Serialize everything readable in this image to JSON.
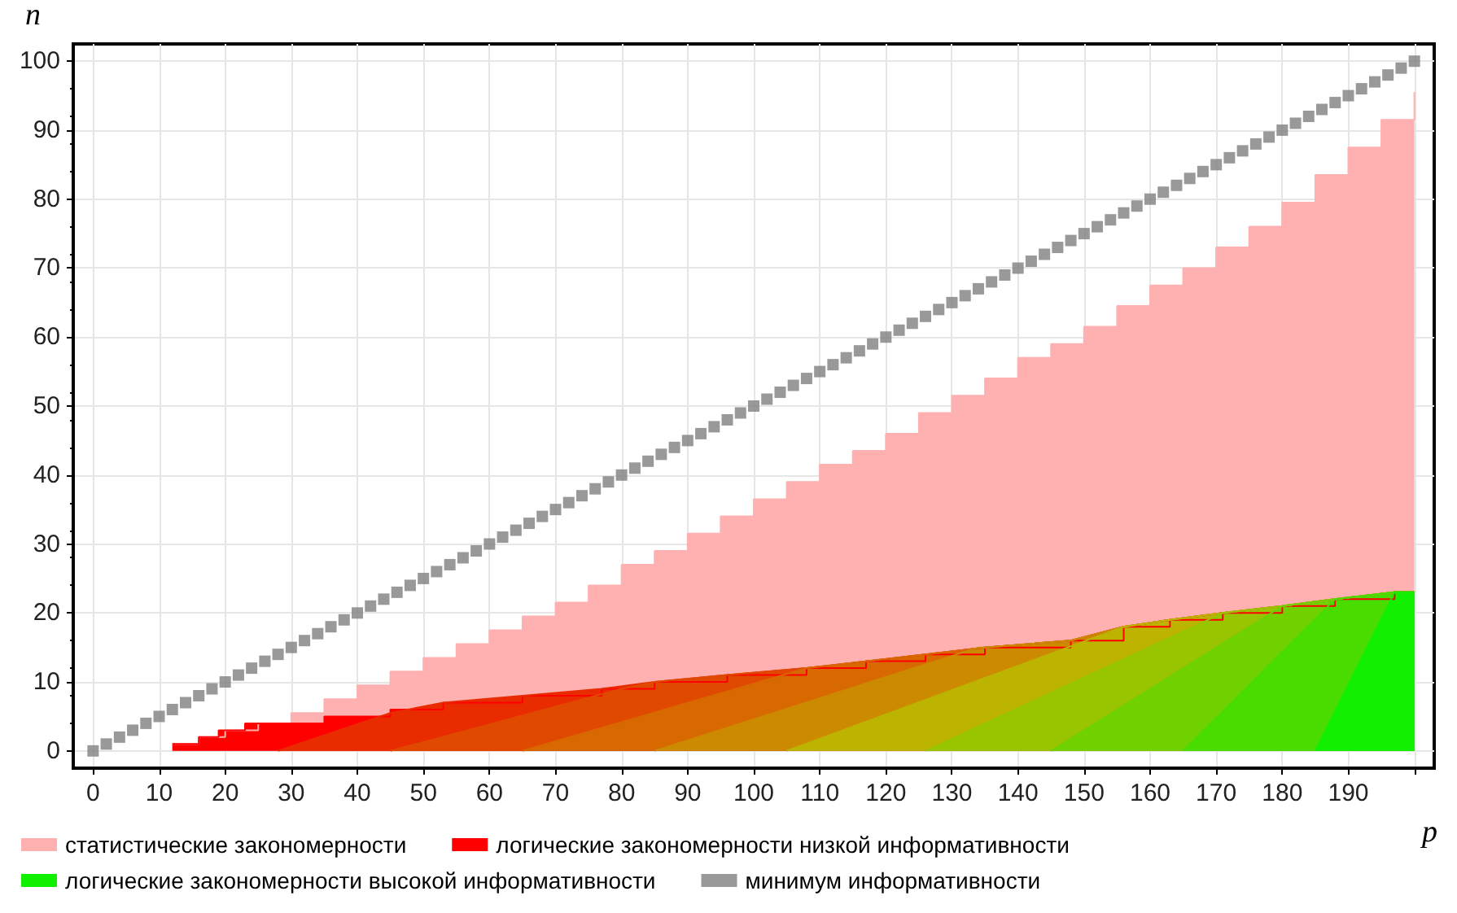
{
  "chart_data": {
    "type": "area",
    "xlabel": "p",
    "ylabel": "n",
    "xlim": [
      -3,
      203
    ],
    "ylim": [
      -2.5,
      102.5
    ],
    "xticks": [
      0,
      10,
      20,
      30,
      40,
      50,
      60,
      70,
      80,
      90,
      100,
      110,
      120,
      130,
      140,
      150,
      160,
      170,
      180,
      190,
      {
        "value": 200,
        "label": null
      }
    ],
    "yticks": [
      0,
      10,
      20,
      30,
      40,
      50,
      60,
      70,
      80,
      90,
      100
    ],
    "grid": true,
    "legend": "bottom",
    "series": [
      {
        "name": "статистические закономерности",
        "color": "#ffb0b0",
        "x": [
          12,
          16,
          16,
          20,
          20,
          25,
          25,
          30,
          30,
          35,
          35,
          40,
          40,
          45,
          45,
          50,
          50,
          55,
          55,
          60,
          60,
          65,
          65,
          70,
          70,
          75,
          75,
          80,
          80,
          85,
          85,
          90,
          90,
          95,
          95,
          100,
          100,
          105,
          105,
          110,
          110,
          115,
          115,
          120,
          120,
          125,
          125,
          130,
          130,
          135,
          135,
          140,
          140,
          145,
          145,
          150,
          150,
          155,
          155,
          160,
          160,
          165,
          165,
          170,
          170,
          175,
          175,
          180,
          180,
          185,
          185,
          190,
          190,
          195,
          195,
          200,
          200
        ],
        "values": [
          1,
          1,
          2,
          2,
          3,
          3,
          4,
          4,
          5.5,
          5.5,
          7.5,
          7.5,
          9.5,
          9.5,
          11.5,
          11.5,
          13.5,
          13.5,
          15.5,
          15.5,
          17.5,
          17.5,
          19.5,
          19.5,
          21.5,
          21.5,
          24,
          24,
          27,
          27,
          29,
          29,
          31.5,
          31.5,
          34,
          34,
          36.5,
          36.5,
          39,
          39,
          41.5,
          41.5,
          43.5,
          43.5,
          46,
          46,
          49,
          49,
          51.5,
          51.5,
          54,
          54,
          57,
          57,
          59,
          59,
          61.5,
          61.5,
          64.5,
          64.5,
          67.5,
          67.5,
          70,
          70,
          73,
          73,
          76,
          76,
          79.5,
          79.5,
          83.5,
          83.5,
          87.5,
          87.5,
          91.5,
          91.5,
          95.5
        ]
      },
      {
        "name": "логические закономерности низкой информативности",
        "color": "#ff0000",
        "x": [
          12,
          16,
          16,
          19,
          19,
          23,
          23,
          35,
          35,
          45,
          45,
          53,
          53,
          65,
          65,
          77,
          77,
          85,
          85,
          96,
          96,
          108,
          108,
          117,
          117,
          126,
          126,
          135,
          135,
          148,
          148,
          156,
          156,
          163,
          163,
          171,
          171,
          180,
          180,
          188,
          188,
          197,
          197,
          200
        ],
        "values": [
          1,
          1,
          2,
          2,
          3,
          3,
          4,
          4,
          5,
          5,
          6,
          6,
          7,
          7,
          8,
          8,
          9,
          9,
          10,
          10,
          11,
          11,
          12,
          12,
          13,
          13,
          14,
          14,
          15,
          15,
          16,
          16,
          18,
          18,
          19,
          19,
          20,
          20,
          21,
          21,
          22,
          22,
          23,
          23
        ]
      },
      {
        "type": "area",
        "color": "#e82c00",
        "x": [
          28,
          45,
          53,
          65,
          77,
          85,
          96,
          108,
          117,
          126,
          135,
          148,
          156,
          163,
          171,
          180,
          188,
          197,
          200
        ],
        "values": [
          0,
          5.5,
          7,
          8,
          9,
          10,
          11,
          12,
          13,
          14,
          15,
          16,
          18,
          19,
          20,
          21,
          22,
          23,
          23
        ]
      },
      {
        "type": "area",
        "color": "#e04a00",
        "x": [
          45,
          80,
          85,
          96,
          108,
          117,
          126,
          135,
          148,
          156,
          163,
          171,
          180,
          188,
          197,
          200
        ],
        "values": [
          0,
          9,
          10,
          11,
          12,
          13,
          14,
          15,
          16,
          18,
          19,
          20,
          21,
          22,
          23,
          23
        ]
      },
      {
        "type": "area",
        "color": "#d86800",
        "x": [
          65,
          108,
          117,
          126,
          135,
          148,
          156,
          163,
          171,
          180,
          188,
          197,
          200
        ],
        "values": [
          0,
          12,
          13,
          14,
          15,
          16,
          18,
          19,
          20,
          21,
          22,
          23,
          23
        ]
      },
      {
        "type": "area",
        "color": "#cc8a00",
        "x": [
          85,
          134,
          135,
          148,
          156,
          163,
          171,
          180,
          188,
          197,
          200
        ],
        "values": [
          0,
          15,
          15,
          16,
          18,
          19,
          20,
          21,
          22,
          23,
          23
        ]
      },
      {
        "type": "area",
        "color": "#bcb400",
        "x": [
          105,
          156,
          163,
          171,
          180,
          188,
          197,
          200
        ],
        "values": [
          0,
          18,
          19,
          20,
          21,
          22,
          23,
          23
        ]
      },
      {
        "type": "area",
        "color": "#98c400",
        "x": [
          126,
          171,
          180,
          188,
          197,
          200
        ],
        "values": [
          0,
          20,
          21,
          22,
          23,
          23
        ]
      },
      {
        "type": "area",
        "color": "#70d000",
        "x": [
          145,
          180,
          188,
          197,
          200
        ],
        "values": [
          0,
          21,
          22,
          23,
          23
        ]
      },
      {
        "type": "area",
        "color": "#48dc00",
        "x": [
          165,
          188,
          197,
          200
        ],
        "values": [
          0,
          22,
          23,
          23
        ]
      },
      {
        "name": "логические закономерности высокой информативности",
        "color": "#10f000",
        "x": [
          185,
          197,
          200
        ],
        "values": [
          0,
          23,
          23
        ]
      },
      {
        "name": "минимум информативности",
        "type": "scatter",
        "marker": "square",
        "color": "#808080",
        "x": [
          0,
          2,
          4,
          6,
          8,
          10,
          12,
          14,
          16,
          18,
          20,
          22,
          24,
          26,
          28,
          30,
          32,
          34,
          36,
          38,
          40,
          42,
          44,
          46,
          48,
          50,
          52,
          54,
          56,
          58,
          60,
          62,
          64,
          66,
          68,
          70,
          72,
          74,
          76,
          78,
          80,
          82,
          84,
          86,
          88,
          90,
          92,
          94,
          96,
          98,
          100,
          102,
          104,
          106,
          108,
          110,
          112,
          114,
          116,
          118,
          120,
          122,
          124,
          126,
          128,
          130,
          132,
          134,
          136,
          138,
          140,
          142,
          144,
          146,
          148,
          150,
          152,
          154,
          156,
          158,
          160,
          162,
          164,
          166,
          168,
          170,
          172,
          174,
          176,
          178,
          180,
          182,
          184,
          186,
          188,
          190,
          192,
          194,
          196,
          198,
          200
        ],
        "values": [
          0,
          1,
          2,
          3,
          4,
          5,
          6,
          7,
          8,
          9,
          10,
          11,
          12,
          13,
          14,
          15,
          16,
          17,
          18,
          19,
          20,
          21,
          22,
          23,
          24,
          25,
          26,
          27,
          28,
          29,
          30,
          31,
          32,
          33,
          34,
          35,
          36,
          37,
          38,
          39,
          40,
          41,
          42,
          43,
          44,
          45,
          46,
          47,
          48,
          49,
          50,
          51,
          52,
          53,
          54,
          55,
          56,
          57,
          58,
          59,
          60,
          61,
          62,
          63,
          64,
          65,
          66,
          67,
          68,
          69,
          70,
          71,
          72,
          73,
          74,
          75,
          76,
          77,
          78,
          79,
          80,
          81,
          82,
          83,
          84,
          85,
          86,
          87,
          88,
          89,
          90,
          91,
          92,
          93,
          94,
          95,
          96,
          97,
          98,
          99,
          100
        ]
      }
    ]
  }
}
